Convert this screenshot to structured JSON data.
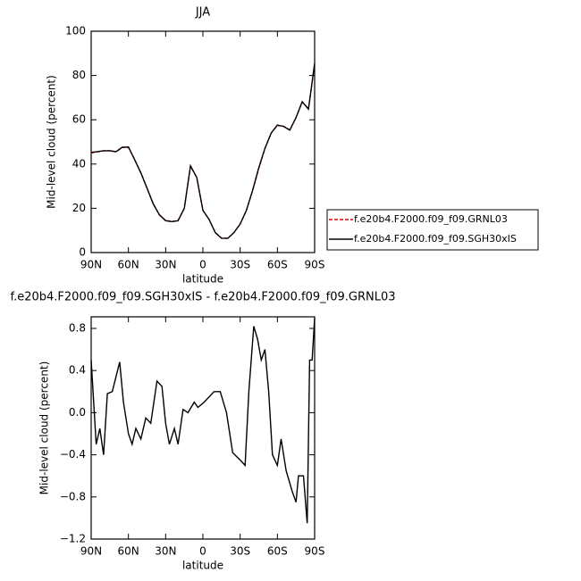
{
  "chart_data": [
    {
      "type": "line",
      "title": "JJA",
      "xlabel": "latitude",
      "ylabel": "Mid-level cloud (percent)",
      "x": [
        90,
        85,
        80,
        75,
        70,
        65,
        60,
        55,
        50,
        45,
        40,
        35,
        30,
        25,
        20,
        15,
        10,
        5,
        0,
        -5,
        -10,
        -15,
        -20,
        -25,
        -30,
        -35,
        -40,
        -45,
        -50,
        -55,
        -60,
        -65,
        -70,
        -75,
        -80,
        -85,
        -90
      ],
      "series": [
        {
          "name": "f.e20b4.F2000.f09_f09.GRNL03",
          "color": "#e00000",
          "dash": "dashed",
          "values": [
            45,
            45.5,
            46,
            46,
            45.5,
            47.5,
            47.5,
            42,
            36,
            29,
            22,
            17,
            14.5,
            14,
            14.5,
            20,
            39,
            34,
            19,
            15,
            9,
            6.5,
            6.5,
            9,
            13,
            19,
            28,
            38,
            47,
            54,
            57.5,
            57,
            55.5,
            61,
            68,
            65,
            85
          ]
        },
        {
          "name": "f.e20b4.F2000.f09_f09.SGH30xIS",
          "color": "#000000",
          "dash": "solid",
          "values": [
            45.3,
            45.6,
            46,
            46,
            45.6,
            47.6,
            47.7,
            42,
            36,
            29.1,
            22,
            17,
            14.4,
            14,
            14.4,
            20,
            39.2,
            34,
            19.1,
            15,
            9,
            6.5,
            6.4,
            9,
            12.9,
            19,
            28.1,
            38.3,
            47.1,
            54,
            57.6,
            57,
            55.3,
            61,
            68.2,
            64.8,
            85.5
          ]
        }
      ],
      "xlim": [
        90,
        -90
      ],
      "xticks": [
        {
          "value": 90,
          "label": "90N"
        },
        {
          "value": 60,
          "label": "60N"
        },
        {
          "value": 30,
          "label": "30N"
        },
        {
          "value": 0,
          "label": "0"
        },
        {
          "value": -30,
          "label": "30S"
        },
        {
          "value": -60,
          "label": "60S"
        },
        {
          "value": -90,
          "label": "90S"
        }
      ],
      "ylim": [
        0,
        100
      ],
      "yticks": [
        0,
        20,
        40,
        60,
        80,
        100
      ],
      "legend": "right"
    },
    {
      "type": "line",
      "title": "f.e20b4.F2000.f09_f09.SGH30xIS - f.e20b4.F2000.f09_f09.GRNL03",
      "xlabel": "latitude",
      "ylabel": "Mid-level cloud (percent)",
      "x": [
        90,
        86,
        83,
        80,
        77,
        73,
        67,
        64,
        60,
        57,
        54,
        50,
        46,
        42,
        37,
        33,
        30,
        27,
        23,
        20,
        16,
        12,
        7,
        4,
        -1,
        -9,
        -14,
        -19,
        -24,
        -30,
        -34,
        -37,
        -41,
        -44,
        -47,
        -50,
        -53,
        -56,
        -60,
        -63,
        -67,
        -72,
        -75,
        -77,
        -81,
        -84,
        -86,
        -88,
        -90
      ],
      "series": [
        {
          "color": "#000000",
          "dash": "solid",
          "values": [
            0.5,
            -0.3,
            -0.15,
            -0.4,
            0.18,
            0.2,
            0.48,
            0.1,
            -0.2,
            -0.3,
            -0.15,
            -0.25,
            -0.05,
            -0.1,
            0.3,
            0.25,
            -0.1,
            -0.3,
            -0.15,
            -0.3,
            0.03,
            0.0,
            0.1,
            0.05,
            0.1,
            0.2,
            0.2,
            0.0,
            -0.38,
            -0.45,
            -0.5,
            0.2,
            0.82,
            0.7,
            0.5,
            0.6,
            0.2,
            -0.4,
            -0.5,
            -0.25,
            -0.55,
            -0.75,
            -0.85,
            -0.6,
            -0.6,
            -1.05,
            0.5,
            0.5,
            0.9
          ]
        }
      ],
      "xlim": [
        90,
        -90
      ],
      "xticks": [
        {
          "value": 90,
          "label": "90N"
        },
        {
          "value": 60,
          "label": "60N"
        },
        {
          "value": 30,
          "label": "30N"
        },
        {
          "value": 0,
          "label": "0"
        },
        {
          "value": -30,
          "label": "30S"
        },
        {
          "value": -60,
          "label": "60S"
        },
        {
          "value": -90,
          "label": "90S"
        }
      ],
      "ylim": [
        -1.2,
        0.91
      ],
      "yticks": [
        {
          "value": 0.8,
          "label": "0.8"
        },
        {
          "value": 0.4,
          "label": "0.4"
        },
        {
          "value": 0,
          "label": "0.0"
        },
        {
          "value": -0.4,
          "label": "−0.4"
        },
        {
          "value": -0.8,
          "label": "−0.8"
        },
        {
          "value": -1.2,
          "label": "−1.2"
        }
      ]
    }
  ]
}
